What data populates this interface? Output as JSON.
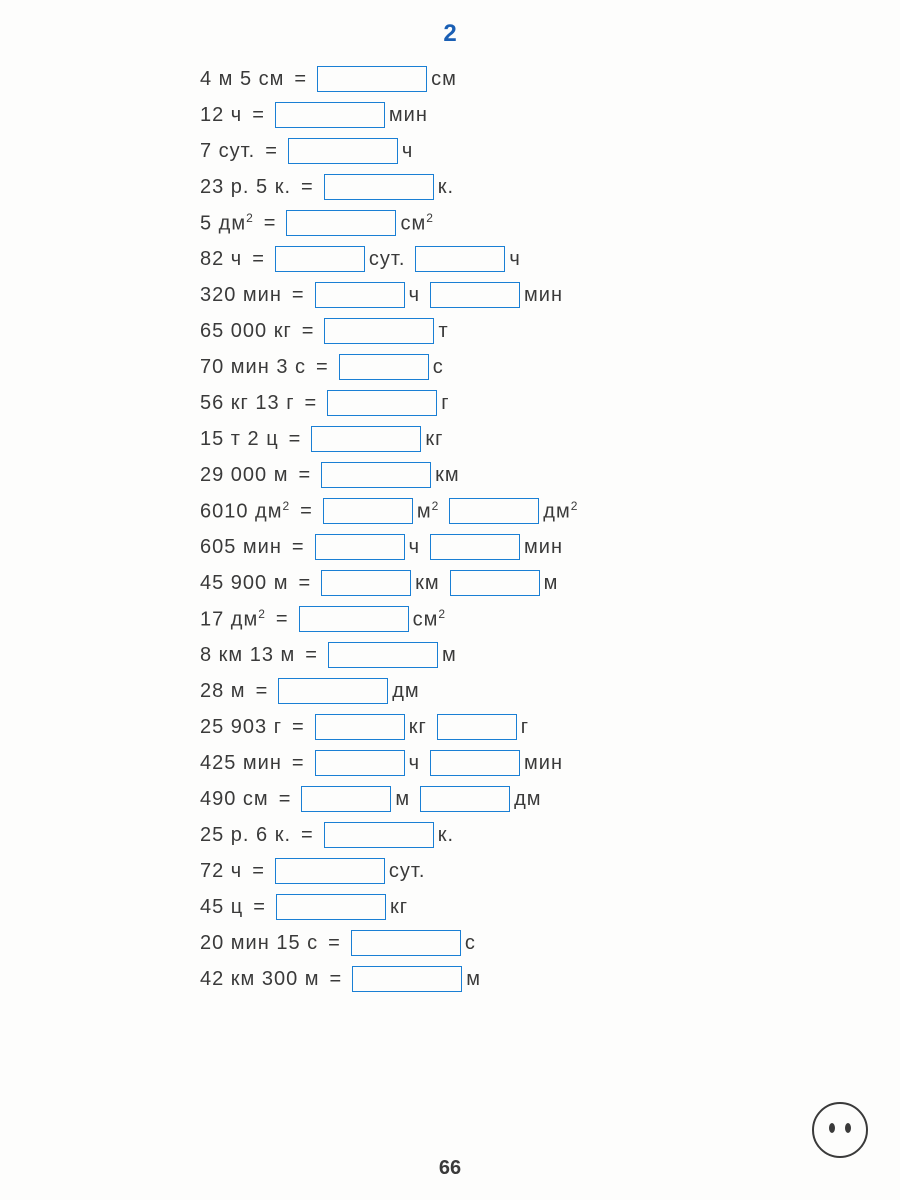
{
  "title": "2",
  "page_number": "66",
  "styling": {
    "box_border_color": "#1a7fd4",
    "title_color": "#1a5fb4",
    "text_color": "#3a3a3a",
    "background_color": "#fdfdfc",
    "font_size_row": 20,
    "font_size_title": 24
  },
  "eq": "=",
  "rows": [
    {
      "parts": [
        {
          "t": "4 м 5 см"
        },
        {
          "eq": true
        },
        {
          "box": "w-l"
        },
        {
          "t": "см"
        }
      ]
    },
    {
      "parts": [
        {
          "t": "12 ч"
        },
        {
          "eq": true
        },
        {
          "box": "w-l"
        },
        {
          "t": "мин"
        }
      ]
    },
    {
      "parts": [
        {
          "t": "7 сут."
        },
        {
          "eq": true
        },
        {
          "box": "w-l"
        },
        {
          "t": "ч"
        }
      ]
    },
    {
      "parts": [
        {
          "t": "23 р. 5 к."
        },
        {
          "eq": true
        },
        {
          "box": "w-l"
        },
        {
          "t": "к."
        }
      ]
    },
    {
      "parts": [
        {
          "t": "5 дм",
          "sup": "2"
        },
        {
          "eq": true
        },
        {
          "box": "w-l"
        },
        {
          "t": "см",
          "sup": "2"
        }
      ]
    },
    {
      "parts": [
        {
          "t": "82 ч"
        },
        {
          "eq": true
        },
        {
          "box": "w-m"
        },
        {
          "t": "сут."
        },
        {
          "box": "w-m"
        },
        {
          "t": "ч"
        }
      ]
    },
    {
      "parts": [
        {
          "t": "320 мин"
        },
        {
          "eq": true
        },
        {
          "box": "w-m"
        },
        {
          "t": "ч"
        },
        {
          "box": "w-m"
        },
        {
          "t": "мин"
        }
      ]
    },
    {
      "parts": [
        {
          "t": "65 000 кг"
        },
        {
          "eq": true
        },
        {
          "box": "w-l"
        },
        {
          "t": "т"
        }
      ]
    },
    {
      "parts": [
        {
          "t": "70 мин 3 с"
        },
        {
          "eq": true
        },
        {
          "box": "w-m"
        },
        {
          "t": "с"
        }
      ]
    },
    {
      "parts": [
        {
          "t": "56 кг 13 г"
        },
        {
          "eq": true
        },
        {
          "box": "w-l"
        },
        {
          "t": "г"
        }
      ]
    },
    {
      "parts": [
        {
          "t": "15 т 2 ц"
        },
        {
          "eq": true
        },
        {
          "box": "w-l"
        },
        {
          "t": "кг"
        }
      ]
    },
    {
      "parts": [
        {
          "t": "29 000 м"
        },
        {
          "eq": true
        },
        {
          "box": "w-l"
        },
        {
          "t": "км"
        }
      ]
    },
    {
      "parts": [
        {
          "t": "6010 дм",
          "sup": "2"
        },
        {
          "eq": true
        },
        {
          "box": "w-m"
        },
        {
          "t": "м",
          "sup": "2"
        },
        {
          "box": "w-m"
        },
        {
          "t": "дм",
          "sup": "2"
        }
      ]
    },
    {
      "parts": [
        {
          "t": "605 мин"
        },
        {
          "eq": true
        },
        {
          "box": "w-m"
        },
        {
          "t": "ч"
        },
        {
          "box": "w-m"
        },
        {
          "t": "мин"
        }
      ]
    },
    {
      "parts": [
        {
          "t": "45 900 м"
        },
        {
          "eq": true
        },
        {
          "box": "w-m"
        },
        {
          "t": "км"
        },
        {
          "box": "w-m"
        },
        {
          "t": "м"
        }
      ]
    },
    {
      "parts": [
        {
          "t": "17 дм",
          "sup": "2"
        },
        {
          "eq": true
        },
        {
          "box": "w-l"
        },
        {
          "t": "см",
          "sup": "2"
        }
      ]
    },
    {
      "parts": [
        {
          "t": "8 км 13 м"
        },
        {
          "eq": true
        },
        {
          "box": "w-l"
        },
        {
          "t": "м"
        }
      ]
    },
    {
      "parts": [
        {
          "t": "28 м"
        },
        {
          "eq": true
        },
        {
          "box": "w-l"
        },
        {
          "t": "дм"
        }
      ]
    },
    {
      "parts": [
        {
          "t": "25 903 г"
        },
        {
          "eq": true
        },
        {
          "box": "w-m"
        },
        {
          "t": "кг"
        },
        {
          "box": "w-s"
        },
        {
          "t": "г"
        }
      ]
    },
    {
      "parts": [
        {
          "t": "425 мин"
        },
        {
          "eq": true
        },
        {
          "box": "w-m"
        },
        {
          "t": "ч"
        },
        {
          "box": "w-m"
        },
        {
          "t": "мин"
        }
      ]
    },
    {
      "parts": [
        {
          "t": "490 см"
        },
        {
          "eq": true
        },
        {
          "box": "w-m"
        },
        {
          "t": "м"
        },
        {
          "box": "w-m"
        },
        {
          "t": "дм"
        }
      ]
    },
    {
      "parts": [
        {
          "t": "25 р. 6 к."
        },
        {
          "eq": true
        },
        {
          "box": "w-l"
        },
        {
          "t": "к."
        }
      ]
    },
    {
      "parts": [
        {
          "t": "72 ч"
        },
        {
          "eq": true
        },
        {
          "box": "w-l"
        },
        {
          "t": "сут."
        }
      ]
    },
    {
      "parts": [
        {
          "t": "45 ц"
        },
        {
          "eq": true
        },
        {
          "box": "w-l"
        },
        {
          "t": "кг"
        }
      ]
    },
    {
      "parts": [
        {
          "t": "20 мин 15 с"
        },
        {
          "eq": true
        },
        {
          "box": "w-l"
        },
        {
          "t": "с"
        }
      ]
    },
    {
      "parts": [
        {
          "t": "42 км 300 м"
        },
        {
          "eq": true
        },
        {
          "box": "w-l"
        },
        {
          "t": "м"
        }
      ]
    }
  ]
}
